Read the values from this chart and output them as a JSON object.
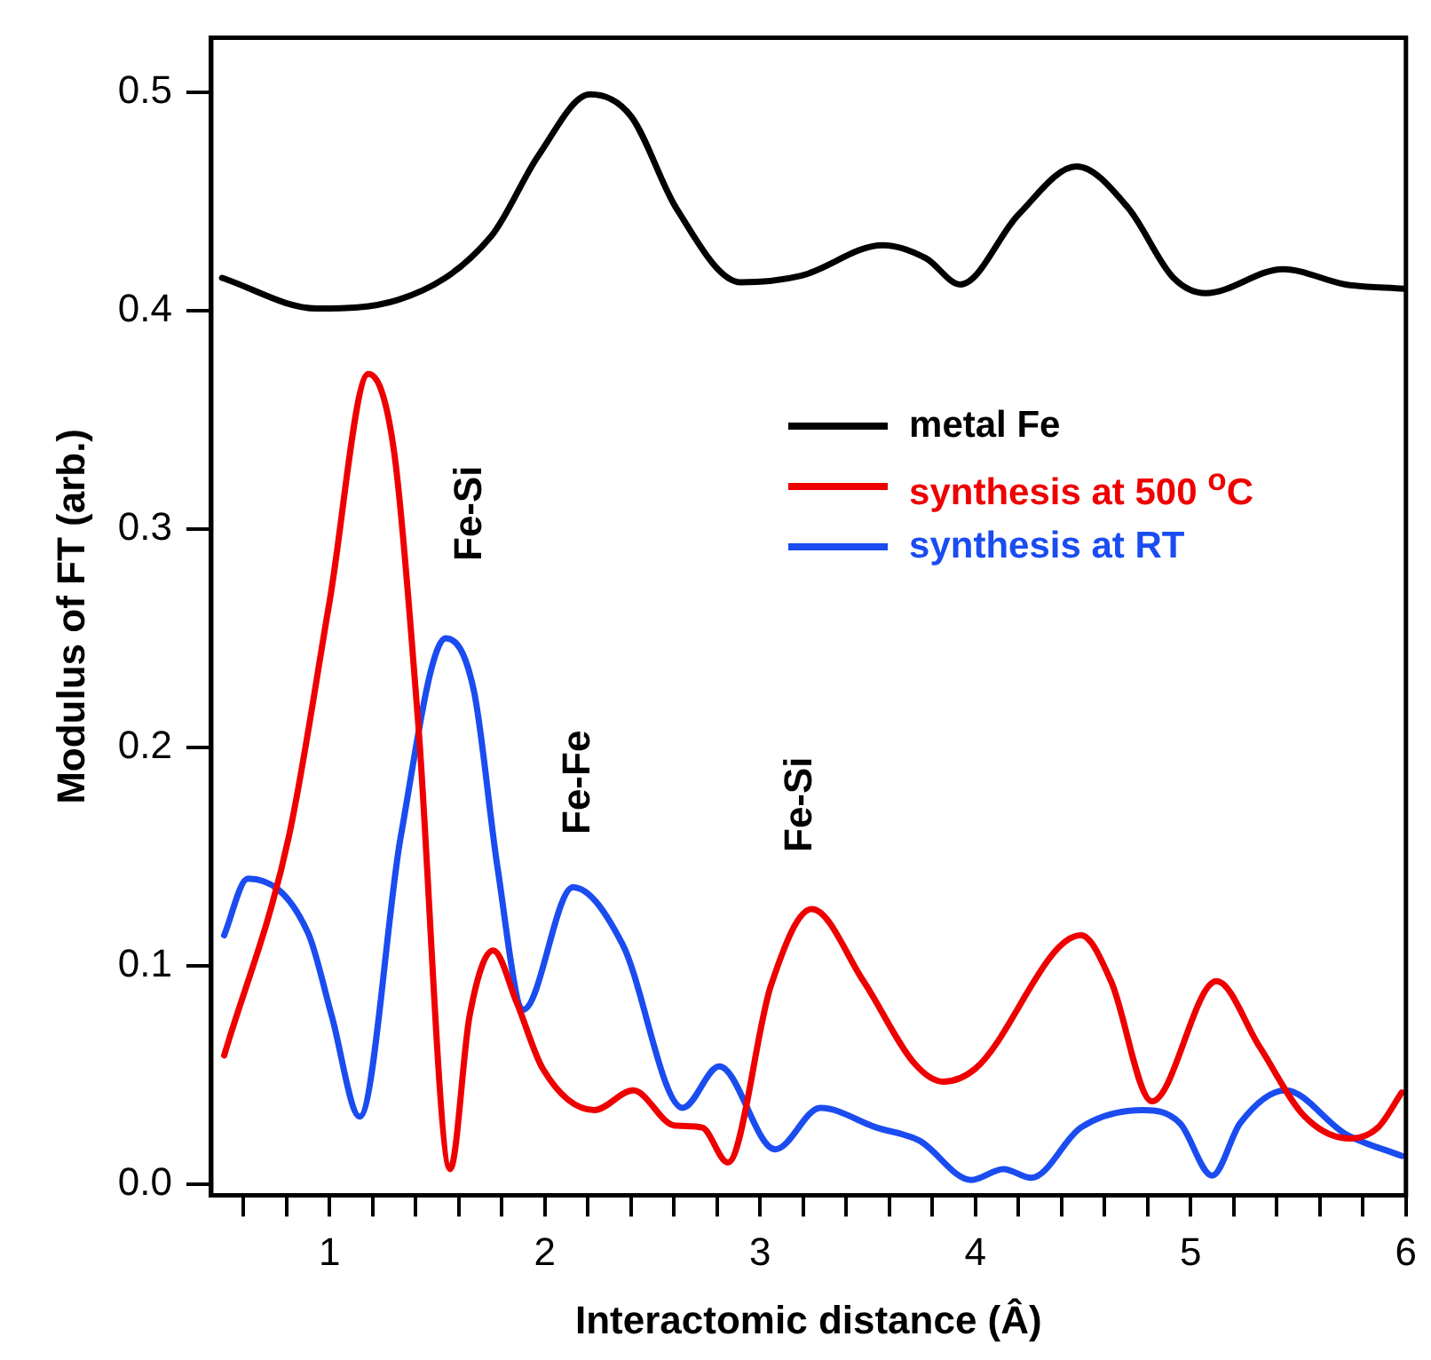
{
  "chart_data": {
    "type": "line",
    "xlabel": "Interactomic distance (Â)",
    "ylabel": "Modulus of FT (arb.)",
    "xlim": [
      0.45,
      6.0
    ],
    "ylim": [
      -0.005,
      0.525
    ],
    "xticks": [
      {
        "value": 0.6,
        "label": null
      },
      {
        "value": 0.8,
        "label": null
      },
      1,
      {
        "value": 1.2,
        "label": null
      },
      {
        "value": 1.4,
        "label": null
      },
      {
        "value": 1.6,
        "label": null
      },
      {
        "value": 1.8,
        "label": null
      },
      2,
      {
        "value": 2.2,
        "label": null
      },
      {
        "value": 2.4,
        "label": null
      },
      {
        "value": 2.6,
        "label": null
      },
      {
        "value": 2.8,
        "label": null
      },
      3,
      {
        "value": 3.2,
        "label": null
      },
      {
        "value": 3.4,
        "label": null
      },
      {
        "value": 3.6,
        "label": null
      },
      {
        "value": 3.8,
        "label": null
      },
      4,
      {
        "value": 4.2,
        "label": null
      },
      {
        "value": 4.4,
        "label": null
      },
      {
        "value": 4.6,
        "label": null
      },
      {
        "value": 4.8,
        "label": null
      },
      5,
      {
        "value": 5.2,
        "label": null
      },
      {
        "value": 5.4,
        "label": null
      },
      {
        "value": 5.6,
        "label": null
      },
      {
        "value": 5.8,
        "label": null
      },
      6
    ],
    "yticks": [
      {
        "value": 0,
        "label": "0.0"
      },
      0.1,
      0.2,
      0.3,
      0.4,
      0.5
    ],
    "grid": false,
    "legend": "top right",
    "marker": "none",
    "line_style": "solid",
    "series": [
      {
        "name": "metal Fe",
        "color": "#000000",
        "x": [
          0.5,
          0.94,
          1.32,
          1.75,
          1.97,
          2.21,
          2.4,
          2.61,
          2.91,
          3.19,
          3.57,
          3.77,
          3.93,
          4.2,
          4.47,
          4.71,
          4.92,
          5.07,
          5.43,
          5.72,
          5.99
        ],
        "values": [
          0.415,
          0.401,
          0.405,
          0.434,
          0.471,
          0.499,
          0.489,
          0.447,
          0.413,
          0.416,
          0.43,
          0.424,
          0.412,
          0.444,
          0.466,
          0.447,
          0.415,
          0.408,
          0.419,
          0.412,
          0.41
        ]
      },
      {
        "name": "synthesis at 500 $^{o}$C",
        "color": "#ee0000",
        "x": [
          0.51,
          0.81,
          1.0,
          1.18,
          1.3,
          1.41,
          1.56,
          1.65,
          1.76,
          1.87,
          1.99,
          2.23,
          2.41,
          2.6,
          2.73,
          2.85,
          3.05,
          3.24,
          3.48,
          3.72,
          3.85,
          4.0,
          4.49,
          4.63,
          4.82,
          5.12,
          5.32,
          5.53,
          5.74,
          5.87,
          5.98
        ],
        "values": [
          0.059,
          0.159,
          0.267,
          0.371,
          0.335,
          0.213,
          0.007,
          0.077,
          0.107,
          0.083,
          0.053,
          0.034,
          0.043,
          0.027,
          0.026,
          0.01,
          0.091,
          0.126,
          0.093,
          0.055,
          0.047,
          0.053,
          0.114,
          0.093,
          0.038,
          0.093,
          0.063,
          0.031,
          0.021,
          0.026,
          0.042
        ]
      },
      {
        "name": "synthesis at RT",
        "color": "#1a4cf0",
        "x": [
          0.51,
          0.62,
          0.9,
          1.01,
          1.14,
          1.33,
          1.54,
          1.67,
          1.78,
          1.9,
          2.13,
          2.36,
          2.64,
          2.81,
          3.07,
          3.28,
          3.54,
          3.74,
          3.98,
          4.13,
          4.26,
          4.49,
          4.78,
          4.95,
          5.1,
          5.23,
          5.44,
          5.72,
          5.98
        ],
        "values": [
          0.114,
          0.14,
          0.115,
          0.077,
          0.031,
          0.159,
          0.25,
          0.226,
          0.145,
          0.08,
          0.136,
          0.11,
          0.035,
          0.054,
          0.016,
          0.035,
          0.026,
          0.02,
          0.002,
          0.007,
          0.003,
          0.026,
          0.034,
          0.028,
          0.004,
          0.028,
          0.043,
          0.023,
          0.013
        ]
      }
    ],
    "annotations": [
      "Fe-Si",
      "Fe-Fe",
      "Fe-Si"
    ]
  }
}
